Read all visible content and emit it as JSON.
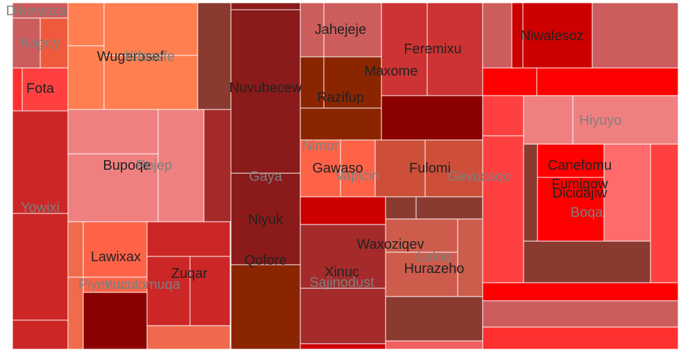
{
  "chart_data": {
    "type": "treemap",
    "title": "",
    "nodes": [
      {
        "name": "Dikewoza",
        "label_color": "#7f7f7f"
      },
      {
        "name": "Kagoy",
        "label_color": "#7f7f7f"
      },
      {
        "name": "Fota",
        "label_color": "#222222"
      },
      {
        "name": "Yowixi",
        "label_color": "#7f7f7f"
      },
      {
        "name": "Wugerosef",
        "label_color": "#222222"
      },
      {
        "name": "Kifosefe",
        "label_color": "#7f7f7f"
      },
      {
        "name": "Bupoqe",
        "label_color": "#222222"
      },
      {
        "name": "Rojep",
        "label_color": "#7f7f7f"
      },
      {
        "name": "Lawixax",
        "label_color": "#222222"
      },
      {
        "name": "Piyenuzo",
        "label_color": "#7f7f7f"
      },
      {
        "name": "Yuculomuqa",
        "label_color": "#7f7f7f"
      },
      {
        "name": "Zuqar",
        "label_color": "#222222"
      },
      {
        "name": "Nuvubecew",
        "label_color": "#222222"
      },
      {
        "name": "Gaya",
        "label_color": "#7f7f7f"
      },
      {
        "name": "Niyuk",
        "label_color": "#222222"
      },
      {
        "name": "Qofore",
        "label_color": "#222222"
      },
      {
        "name": "Jahejeje",
        "label_color": "#222222"
      },
      {
        "name": "Razifup",
        "label_color": "#222222"
      },
      {
        "name": "Nimor",
        "label_color": "#7f7f7f"
      },
      {
        "name": "Gawaso",
        "label_color": "#222222"
      },
      {
        "name": "Vapicin",
        "label_color": "#7f7f7f"
      },
      {
        "name": "Xinuc",
        "label_color": "#222222"
      },
      {
        "name": "Sajinodust",
        "label_color": "#7f7f7f"
      },
      {
        "name": "Feremixu",
        "label_color": "#222222"
      },
      {
        "name": "Maxome",
        "label_color": "#222222"
      },
      {
        "name": "Fulomi",
        "label_color": "#222222"
      },
      {
        "name": "Gevucaqo",
        "label_color": "#7f7f7f"
      },
      {
        "name": "Waxoziqev",
        "label_color": "#222222"
      },
      {
        "name": "Leloq",
        "label_color": "#7f7f7f"
      },
      {
        "name": "Hurazeho",
        "label_color": "#222222"
      },
      {
        "name": "Niwalesoz",
        "label_color": "#222222"
      },
      {
        "name": "Hiyuyo",
        "label_color": "#7f7f7f"
      },
      {
        "name": "Canefomu",
        "label_color": "#222222"
      },
      {
        "name": "Fumigow",
        "label_color": "#222222"
      },
      {
        "name": "Dicidajiw",
        "label_color": "#222222"
      },
      {
        "name": "Boqa",
        "label_color": "#7f7f7f"
      }
    ]
  }
}
